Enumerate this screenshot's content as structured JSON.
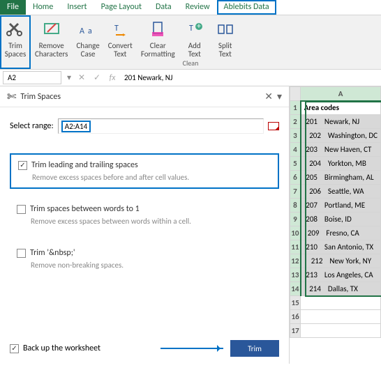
{
  "tabs": [
    "File",
    "Home",
    "Insert",
    "Page Layout",
    "Data",
    "Review",
    "Ablebits Data"
  ],
  "ribbon": {
    "items": [
      {
        "label": "Trim\nSpaces",
        "highlight": true
      },
      {
        "label": "Remove\nCharacters"
      },
      {
        "label": "Change\nCase"
      },
      {
        "label": "Convert\nText"
      },
      {
        "label": "Clear\nFormatting"
      },
      {
        "label": "Add\nText"
      },
      {
        "label": "Split\nText"
      }
    ],
    "group": "Clean"
  },
  "namebox": "A2",
  "formula": "201    Newark, NJ",
  "panel": {
    "title": "Trim Spaces",
    "select_label": "Select range:",
    "range": "A2:A14",
    "opt1": {
      "label": "Trim leading and trailing spaces",
      "desc": "Remove excess spaces before and after cell values.",
      "checked": true
    },
    "opt2": {
      "label": "Trim spaces between words to 1",
      "desc": "Remove excess spaces between words within a cell.",
      "checked": false
    },
    "opt3": {
      "label": "Trim '&nbsp;'",
      "desc": "Remove non-breaking spaces.",
      "checked": false
    },
    "backup": "Back up the worksheet",
    "button": "Trim"
  },
  "sheet": {
    "col": "A",
    "header": "Area codes",
    "rows": [
      " 201    Newark, NJ",
      "   202    Washington, DC",
      " 203    New Haven, CT",
      "   204    Yorkton, MB",
      " 205    Birmingham, AL",
      "   206    Seattle, WA",
      " 207    Portland, ME",
      " 208    Boise, ID",
      "  209    Fresno, CA",
      " 210    San Antonio, TX",
      "    212    New York, NY",
      " 213    Los Angeles, CA",
      "   214    Dallas, TX"
    ]
  }
}
